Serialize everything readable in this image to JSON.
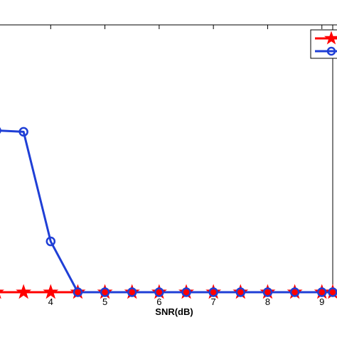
{
  "chart_data": {
    "type": "line",
    "title": "",
    "xlabel": "SNR(dB)",
    "ylabel": "",
    "xlim": [
      3,
      9.2
    ],
    "ylim": [
      0,
      1
    ],
    "x_ticks": [
      4,
      5,
      6,
      7,
      8,
      9
    ],
    "x_tick_labels": [
      "4",
      "5",
      "6",
      "7",
      "8",
      "9"
    ],
    "grid": false,
    "legend_position": "top-right",
    "series": [
      {
        "color": "#ff0000",
        "marker": "star",
        "x": [
          3,
          3.5,
          4,
          4.5,
          5,
          5.5,
          6,
          6.5,
          7,
          7.5,
          8,
          8.5,
          9,
          9.2
        ],
        "y": [
          0,
          0,
          0,
          0,
          0,
          0,
          0,
          0,
          0,
          0,
          0,
          0,
          0,
          0
        ]
      },
      {
        "color": "#1f3fd6",
        "marker": "circle",
        "x": [
          3,
          3.5,
          4,
          4.5,
          5,
          5.5,
          6,
          6.5,
          7,
          7.5,
          8,
          8.5,
          9,
          9.2
        ],
        "y": [
          0.605,
          0.6,
          0.19,
          0,
          0,
          0,
          0,
          0,
          0,
          0,
          0,
          0,
          0,
          0
        ]
      }
    ]
  }
}
